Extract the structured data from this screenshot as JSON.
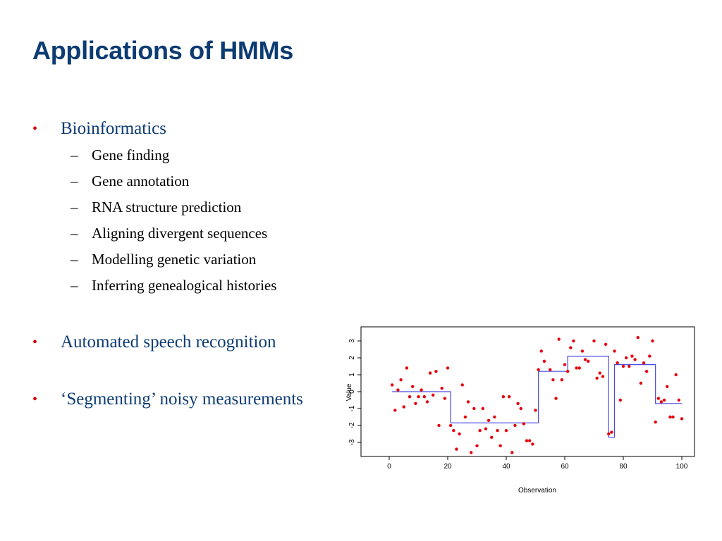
{
  "slide": {
    "title": "Applications of HMMs",
    "bullets": [
      {
        "label": "Bioinformatics",
        "sub": [
          "Gene finding",
          "Gene annotation",
          "RNA structure prediction",
          "Aligning divergent sequences",
          "Modelling genetic variation",
          "Inferring genealogical histories"
        ]
      },
      {
        "label": "Automated speech recognition",
        "sub": []
      },
      {
        "label": "‘Segmenting’ noisy measurements",
        "sub": []
      }
    ]
  },
  "chart_data": {
    "type": "scatter",
    "xlabel": "Observation",
    "ylabel": "Value",
    "xlim": [
      0,
      100
    ],
    "ylim": [
      -3.5,
      3.5
    ],
    "xticks": [
      0,
      20,
      40,
      60,
      80,
      100
    ],
    "yticks": [
      -3,
      -2,
      -1,
      0,
      1,
      2,
      3
    ],
    "colors": {
      "points": "#e8000b",
      "segments": "#4a4ae0"
    },
    "points": [
      [
        1,
        0.4
      ],
      [
        2,
        -1.1
      ],
      [
        3,
        0.1
      ],
      [
        4,
        0.7
      ],
      [
        5,
        -0.9
      ],
      [
        6,
        1.4
      ],
      [
        7,
        -0.3
      ],
      [
        8,
        0.3
      ],
      [
        9,
        -0.7
      ],
      [
        10,
        -0.3
      ],
      [
        11,
        0.1
      ],
      [
        12,
        -0.3
      ],
      [
        13,
        -0.6
      ],
      [
        14,
        1.1
      ],
      [
        15,
        -0.2
      ],
      [
        16,
        1.2
      ],
      [
        17,
        -2.0
      ],
      [
        18,
        0.2
      ],
      [
        19,
        -0.4
      ],
      [
        20,
        1.4
      ],
      [
        21,
        -2.0
      ],
      [
        22,
        -2.3
      ],
      [
        23,
        -3.4
      ],
      [
        24,
        -2.5
      ],
      [
        25,
        0.4
      ],
      [
        26,
        -1.5
      ],
      [
        27,
        -0.6
      ],
      [
        28,
        -3.6
      ],
      [
        29,
        -1.0
      ],
      [
        30,
        -3.2
      ],
      [
        31,
        -2.3
      ],
      [
        32,
        -1.0
      ],
      [
        33,
        -2.2
      ],
      [
        34,
        -1.7
      ],
      [
        35,
        -2.7
      ],
      [
        36,
        -1.5
      ],
      [
        37,
        -2.3
      ],
      [
        38,
        -3.2
      ],
      [
        39,
        -0.3
      ],
      [
        40,
        -2.3
      ],
      [
        41,
        -0.3
      ],
      [
        42,
        -3.6
      ],
      [
        43,
        -2.0
      ],
      [
        44,
        -0.7
      ],
      [
        45,
        -1.0
      ],
      [
        46,
        -1.9
      ],
      [
        47,
        -2.9
      ],
      [
        48,
        -2.9
      ],
      [
        49,
        -3.1
      ],
      [
        50,
        -1.1
      ],
      [
        51,
        1.3
      ],
      [
        52,
        2.4
      ],
      [
        53,
        1.8
      ],
      [
        55,
        1.3
      ],
      [
        56,
        0.7
      ],
      [
        57,
        -0.4
      ],
      [
        58,
        3.1
      ],
      [
        59,
        0.7
      ],
      [
        60,
        1.6
      ],
      [
        61,
        1.2
      ],
      [
        62,
        2.6
      ],
      [
        63,
        3.0
      ],
      [
        64,
        1.4
      ],
      [
        65,
        1.4
      ],
      [
        66,
        2.4
      ],
      [
        67,
        1.9
      ],
      [
        68,
        1.8
      ],
      [
        70,
        3.0
      ],
      [
        71,
        0.8
      ],
      [
        72,
        1.1
      ],
      [
        73,
        0.9
      ],
      [
        74,
        2.8
      ],
      [
        75,
        -2.5
      ],
      [
        76,
        -2.4
      ],
      [
        77,
        2.4
      ],
      [
        78,
        1.7
      ],
      [
        79,
        -0.5
      ],
      [
        80,
        1.5
      ],
      [
        81,
        2.0
      ],
      [
        82,
        1.5
      ],
      [
        83,
        2.1
      ],
      [
        84,
        1.9
      ],
      [
        85,
        3.2
      ],
      [
        86,
        0.5
      ],
      [
        87,
        1.7
      ],
      [
        88,
        1.2
      ],
      [
        89,
        2.1
      ],
      [
        90,
        3.0
      ],
      [
        91,
        -1.8
      ],
      [
        92,
        -0.4
      ],
      [
        93,
        -0.6
      ],
      [
        94,
        -0.5
      ],
      [
        95,
        0.3
      ],
      [
        96,
        -1.5
      ],
      [
        97,
        -1.5
      ],
      [
        98,
        1.0
      ],
      [
        99,
        -0.5
      ],
      [
        100,
        -1.6
      ]
    ],
    "segments": [
      {
        "x0": 1,
        "x1": 21,
        "y": 0.0
      },
      {
        "x0": 21,
        "x1": 51,
        "y": -1.85
      },
      {
        "x0": 51,
        "x1": 61,
        "y": 1.2
      },
      {
        "x0": 61,
        "x1": 75,
        "y": 2.1
      },
      {
        "x0": 75,
        "x1": 77,
        "y": -2.7
      },
      {
        "x0": 77,
        "x1": 91,
        "y": 1.6
      },
      {
        "x0": 91,
        "x1": 100,
        "y": -0.7
      }
    ]
  }
}
